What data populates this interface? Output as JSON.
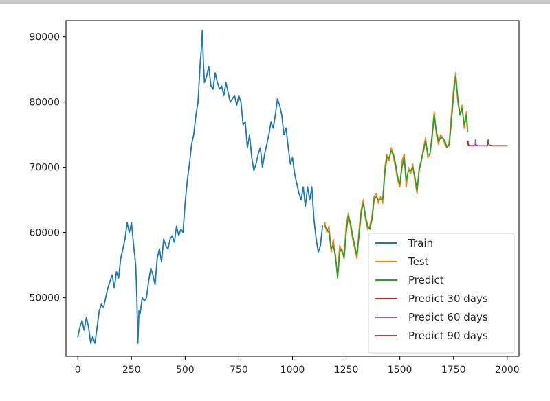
{
  "chart_data": {
    "type": "line",
    "title": "",
    "xlabel": "",
    "ylabel": "",
    "xlim": [
      -55,
      2055
    ],
    "ylim": [
      41000,
      92500
    ],
    "xticks": [
      0,
      250,
      500,
      750,
      1000,
      1250,
      1500,
      1750,
      2000
    ],
    "yticks": [
      50000,
      60000,
      70000,
      80000,
      90000
    ],
    "xtick_labels": [
      "0",
      "250",
      "500",
      "750",
      "1000",
      "1250",
      "1500",
      "1750",
      "2000"
    ],
    "ytick_labels": [
      "50000",
      "60000",
      "70000",
      "80000",
      "90000"
    ],
    "grid": false,
    "legend_position": "lower-right",
    "series": [
      {
        "name": "Train",
        "color": "#1f77b4",
        "x": [
          0,
          10,
          20,
          30,
          40,
          50,
          60,
          70,
          80,
          90,
          100,
          110,
          120,
          130,
          140,
          150,
          160,
          170,
          180,
          190,
          200,
          210,
          220,
          230,
          240,
          250,
          260,
          270,
          275,
          280,
          285,
          290,
          300,
          310,
          320,
          330,
          340,
          350,
          360,
          370,
          380,
          390,
          400,
          410,
          420,
          430,
          440,
          450,
          460,
          470,
          480,
          490,
          500,
          510,
          520,
          530,
          540,
          550,
          560,
          570,
          575,
          580,
          585,
          590,
          600,
          610,
          620,
          630,
          640,
          650,
          660,
          670,
          680,
          690,
          700,
          710,
          720,
          730,
          740,
          750,
          760,
          770,
          780,
          790,
          800,
          810,
          820,
          830,
          840,
          850,
          860,
          870,
          880,
          890,
          900,
          910,
          920,
          930,
          940,
          950,
          960,
          970,
          980,
          990,
          1000,
          1010,
          1020,
          1030,
          1040,
          1050,
          1060,
          1070,
          1080,
          1090,
          1100,
          1110,
          1120,
          1130,
          1140
        ],
        "y": [
          44000,
          45500,
          46500,
          45000,
          47000,
          45500,
          43000,
          44000,
          43000,
          45500,
          48000,
          49000,
          48500,
          50000,
          51500,
          52500,
          53500,
          51500,
          54000,
          53000,
          56000,
          57500,
          59000,
          61500,
          60000,
          61500,
          58000,
          55000,
          50000,
          43000,
          48000,
          47500,
          50000,
          49500,
          50000,
          52500,
          54500,
          53500,
          52000,
          56000,
          57500,
          55500,
          59000,
          58000,
          57500,
          59000,
          59500,
          58500,
          61000,
          59500,
          60500,
          60000,
          64500,
          68000,
          70500,
          73500,
          75000,
          78000,
          80000,
          86000,
          88000,
          91000,
          86000,
          83000,
          84000,
          85500,
          82500,
          82000,
          84500,
          83000,
          82000,
          82500,
          81000,
          83000,
          81500,
          80000,
          80500,
          81000,
          79500,
          81000,
          80000,
          76500,
          77000,
          73000,
          75000,
          71500,
          69500,
          70500,
          72000,
          73000,
          70000,
          72000,
          73500,
          75000,
          77000,
          76000,
          78000,
          80500,
          79500,
          78000,
          75000,
          76000,
          73000,
          70500,
          71500,
          69000,
          67500,
          66000,
          65000,
          67000,
          64000,
          67000,
          65000,
          67000,
          62000,
          59000,
          57000,
          58000,
          61000
        ]
      },
      {
        "name": "Test",
        "color": "#ff7f0e",
        "x": [
          1150,
          1160,
          1170,
          1180,
          1190,
          1200,
          1210,
          1220,
          1230,
          1240,
          1250,
          1260,
          1270,
          1280,
          1290,
          1300,
          1310,
          1320,
          1330,
          1340,
          1350,
          1360,
          1370,
          1380,
          1390,
          1400,
          1410,
          1420,
          1430,
          1440,
          1450,
          1460,
          1470,
          1480,
          1490,
          1500,
          1510,
          1520,
          1530,
          1540,
          1550,
          1560,
          1570,
          1580,
          1590,
          1600,
          1610,
          1620,
          1630,
          1640,
          1650,
          1660,
          1670,
          1680,
          1690,
          1700,
          1710,
          1720,
          1730,
          1740,
          1750,
          1760,
          1770,
          1780,
          1790,
          1800,
          1810,
          1815
        ],
        "y": [
          61500,
          60000,
          61000,
          57000,
          59000,
          56000,
          53500,
          58000,
          57000,
          56500,
          61000,
          63000,
          61000,
          59000,
          57500,
          56000,
          60500,
          63500,
          65000,
          62000,
          60500,
          61000,
          62500,
          65500,
          66000,
          64500,
          65500,
          64500,
          70000,
          72000,
          71000,
          73000,
          71500,
          70000,
          68000,
          67000,
          71000,
          72000,
          67000,
          70000,
          69000,
          70500,
          68000,
          66000,
          70000,
          71000,
          73000,
          74500,
          71500,
          72000,
          75000,
          78500,
          75000,
          73500,
          75000,
          74500,
          73500,
          73000,
          74000,
          78000,
          82000,
          84500,
          80000,
          78000,
          79500,
          76000,
          78500,
          76000
        ]
      },
      {
        "name": "Predict",
        "color": "#2ca02c",
        "x": [
          1150,
          1160,
          1170,
          1180,
          1190,
          1200,
          1210,
          1220,
          1230,
          1240,
          1250,
          1260,
          1270,
          1280,
          1290,
          1300,
          1310,
          1320,
          1330,
          1340,
          1350,
          1360,
          1370,
          1380,
          1390,
          1400,
          1410,
          1420,
          1430,
          1440,
          1450,
          1460,
          1470,
          1480,
          1490,
          1500,
          1510,
          1520,
          1530,
          1540,
          1550,
          1560,
          1570,
          1580,
          1590,
          1600,
          1610,
          1620,
          1630,
          1640,
          1650,
          1660,
          1670,
          1680,
          1690,
          1700,
          1710,
          1720,
          1730,
          1740,
          1750,
          1760,
          1770,
          1780,
          1790,
          1800,
          1810,
          1815
        ],
        "y": [
          61000,
          60500,
          60000,
          57500,
          58000,
          56500,
          53000,
          57000,
          57500,
          56000,
          60000,
          62500,
          61500,
          59500,
          58000,
          56500,
          59500,
          63000,
          64500,
          62500,
          61000,
          60500,
          62000,
          65000,
          65500,
          65000,
          65000,
          65000,
          69000,
          71500,
          71500,
          72500,
          72000,
          70500,
          68500,
          67500,
          70000,
          71500,
          68000,
          69500,
          69500,
          70000,
          68500,
          66500,
          69500,
          71000,
          72500,
          74000,
          72000,
          72000,
          74500,
          78000,
          75500,
          74000,
          74500,
          74500,
          74000,
          73000,
          73500,
          77000,
          81000,
          84000,
          80500,
          78000,
          79000,
          76500,
          78000,
          75500
        ]
      },
      {
        "name": "Predict 30 days",
        "color": "#d62728",
        "x": [
          1815,
          1817,
          1820,
          1830,
          1840,
          1845
        ],
        "y": [
          73500,
          74000,
          73400,
          73300,
          73300,
          73300
        ]
      },
      {
        "name": "Predict 60 days",
        "color": "#9467bd",
        "x": [
          1845,
          1850,
          1852,
          1856,
          1865,
          1880,
          1900,
          1905
        ],
        "y": [
          73300,
          73300,
          74200,
          73400,
          73300,
          73300,
          73300,
          73300
        ]
      },
      {
        "name": "Predict 90 days",
        "color": "#8c564b",
        "x": [
          1905,
          1908,
          1912,
          1916,
          1930,
          1950,
          1970,
          1990,
          2000
        ],
        "y": [
          73300,
          73300,
          74200,
          73400,
          73300,
          73300,
          73300,
          73300,
          73300
        ]
      }
    ]
  }
}
